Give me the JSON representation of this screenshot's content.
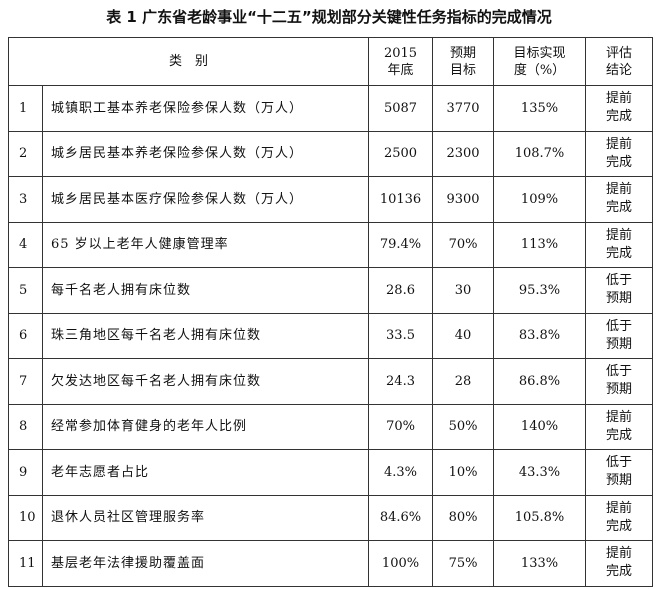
{
  "title": "表 1  广东省老龄事业“十二五”规划部分关键性任务指标的完成情况",
  "table": {
    "header": [
      [
        "类　别"
      ],
      [
        "2015",
        "年底"
      ],
      [
        "预期",
        "目标"
      ],
      [
        "目标实现",
        "度（%）"
      ],
      [
        "评估",
        "结论"
      ]
    ],
    "rows": [
      [
        "1",
        "城镇职工基本养老保险参保人数（万人）",
        "5087",
        "3770",
        "135%",
        "提前完成"
      ],
      [
        "2",
        "城乡居民基本养老保险参保人数（万人）",
        "2500",
        "2300",
        "108.7%",
        "提前完成"
      ],
      [
        "3",
        "城乡居民基本医疗保险参保人数（万人）",
        "10136",
        "9300",
        "109%",
        "提前完成"
      ],
      [
        "4",
        "65 岁以上老年人健康管理率",
        "79.4%",
        "70%",
        "113%",
        "提前完成"
      ],
      [
        "5",
        "每千名老人拥有床位数",
        "28.6",
        "30",
        "95.3%",
        "低于预期"
      ],
      [
        "6",
        "珠三角地区每千名老人拥有床位数",
        "33.5",
        "40",
        "83.8%",
        "低于预期"
      ],
      [
        "7",
        "欠发达地区每千名老人拥有床位数",
        "24.3",
        "28",
        "86.8%",
        "低于预期"
      ],
      [
        "8",
        "经常参加体育健身的老年人比例",
        "70%",
        "50%",
        "140%",
        "提前完成"
      ],
      [
        "9",
        "老年志愿者占比",
        "4.3%",
        "10%",
        "43.3%",
        "低于预期"
      ],
      [
        "10",
        "退休人员社区管理服务率",
        "84.6%",
        "80%",
        "105.8%",
        "提前完成"
      ],
      [
        "11",
        "基层老年法律援助覆盖面",
        "100%",
        "75%",
        "133%",
        "提前完成"
      ]
    ]
  }
}
